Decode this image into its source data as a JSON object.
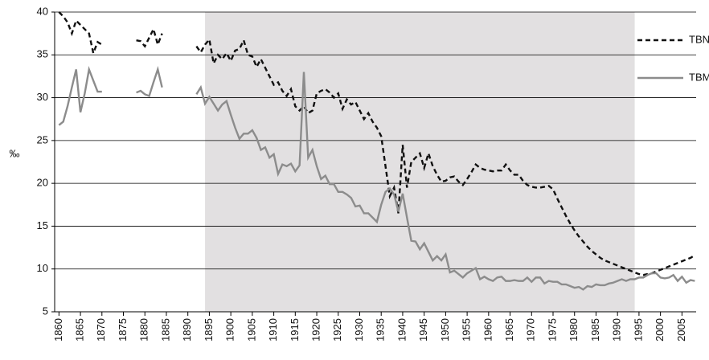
{
  "chart_data": {
    "type": "line",
    "ylabel": "‰",
    "x": [
      1860,
      1861,
      1862,
      1863,
      1864,
      1865,
      1866,
      1867,
      1868,
      1869,
      1870,
      1871,
      1878,
      1879,
      1880,
      1881,
      1882,
      1883,
      1884,
      1885,
      1892,
      1893,
      1894,
      1895,
      1896,
      1897,
      1898,
      1899,
      1900,
      1901,
      1902,
      1903,
      1904,
      1905,
      1906,
      1907,
      1908,
      1909,
      1910,
      1911,
      1912,
      1913,
      1914,
      1915,
      1916,
      1917,
      1918,
      1919,
      1920,
      1921,
      1922,
      1923,
      1924,
      1925,
      1926,
      1927,
      1928,
      1929,
      1930,
      1931,
      1932,
      1933,
      1934,
      1935,
      1936,
      1937,
      1938,
      1939,
      1940,
      1941,
      1942,
      1943,
      1944,
      1945,
      1946,
      1947,
      1948,
      1949,
      1950,
      1951,
      1952,
      1953,
      1954,
      1955,
      1956,
      1957,
      1958,
      1959,
      1960,
      1961,
      1962,
      1963,
      1964,
      1965,
      1966,
      1967,
      1968,
      1969,
      1970,
      1971,
      1972,
      1973,
      1974,
      1975,
      1976,
      1977,
      1978,
      1979,
      1980,
      1981,
      1982,
      1983,
      1984,
      1985,
      1986,
      1987,
      1988,
      1989,
      1990,
      1991,
      1992,
      1993,
      1994,
      1995,
      1996,
      1997,
      1998,
      1999,
      2000,
      2001,
      2002,
      2003,
      2004,
      2005,
      2006,
      2007,
      2008
    ],
    "series": [
      {
        "name": "TBN",
        "color": "#111111",
        "dashed": true,
        "values": [
          40,
          39.5,
          38.8,
          37.5,
          39,
          38.5,
          38,
          37.5,
          35.2,
          36.5,
          36.2,
          null,
          36.7,
          36.6,
          36,
          37,
          38,
          36.2,
          37.5,
          null,
          36,
          35.3,
          36.2,
          36.8,
          34,
          35,
          34.5,
          35.2,
          34.3,
          35.5,
          35.7,
          36.7,
          35,
          34.8,
          33.6,
          34.5,
          33.5,
          32.5,
          31.5,
          31.8,
          30.8,
          30.2,
          31,
          29,
          28.5,
          29,
          28.2,
          28.5,
          30.5,
          30.8,
          31,
          30.6,
          30,
          30.5,
          28.7,
          29.8,
          29.2,
          29.5,
          28.5,
          27.5,
          28.2,
          27.2,
          26.5,
          25.5,
          22,
          18.5,
          19.5,
          16.5,
          24.5,
          19.5,
          22.5,
          23,
          23.5,
          21.8,
          23.5,
          22,
          21,
          20.2,
          20.3,
          20.7,
          20.8,
          20.2,
          19.8,
          20.5,
          21.3,
          22.2,
          21.8,
          21.6,
          21.5,
          21.4,
          21.5,
          21.5,
          22.2,
          21.5,
          21,
          21,
          20.3,
          19.8,
          19.6,
          19.5,
          19.5,
          19.6,
          19.7,
          19.3,
          18.2,
          17.2,
          16.2,
          15.3,
          14.5,
          13.8,
          13.2,
          12.6,
          12.1,
          11.7,
          11.3,
          11,
          10.8,
          10.6,
          10.4,
          10.2,
          10,
          9.8,
          9.6,
          9.4,
          9.3,
          9.4,
          9.5,
          9.7,
          9.9,
          10.1,
          10.3,
          10.5,
          10.7,
          10.9,
          11.1,
          11.3,
          11.6
        ]
      },
      {
        "name": "TBM",
        "color": "#8c8c8c",
        "dashed": false,
        "values": [
          26.8,
          27.2,
          29,
          31.2,
          33.3,
          28.3,
          30.5,
          33.3,
          32,
          30.7,
          30.7,
          null,
          30.6,
          30.8,
          30.4,
          30.2,
          31.8,
          33.3,
          31.2,
          null,
          30.4,
          31.2,
          29.3,
          30.1,
          29.3,
          28.5,
          29.2,
          29.6,
          28,
          26.5,
          25.2,
          25.8,
          25.8,
          26.2,
          25.3,
          23.9,
          24.2,
          23,
          23.4,
          21.1,
          22.2,
          22,
          22.3,
          21.4,
          22.1,
          33,
          23,
          23.9,
          22,
          20.5,
          20.9,
          19.9,
          19.9,
          19,
          19,
          18.7,
          18.3,
          17.3,
          17.4,
          16.5,
          16.5,
          16,
          15.5,
          17.5,
          19,
          19.4,
          18.7,
          16.7,
          18.8,
          16,
          13.3,
          13.2,
          12.3,
          13,
          12,
          11,
          11.5,
          11,
          11.7,
          9.6,
          9.8,
          9.4,
          9,
          9.5,
          9.8,
          10.1,
          8.8,
          9.1,
          8.8,
          8.6,
          9,
          9.1,
          8.6,
          8.6,
          8.7,
          8.6,
          8.6,
          9,
          8.5,
          9,
          9,
          8.3,
          8.6,
          8.5,
          8.5,
          8.2,
          8.2,
          8,
          7.8,
          7.9,
          7.6,
          8,
          7.9,
          8.2,
          8.1,
          8.1,
          8.3,
          8.4,
          8.6,
          8.8,
          8.6,
          8.8,
          8.8,
          9,
          9,
          9.3,
          9.5,
          9.5,
          9,
          8.9,
          9,
          9.3,
          8.6,
          9.1,
          8.4,
          8.7,
          8.6
        ]
      }
    ],
    "shade": [
      1894,
      1994
    ],
    "shade_color": "#e2e0e1",
    "xlim": [
      1859,
      2008.3
    ],
    "xticks": [
      1860,
      1865,
      1870,
      1875,
      1880,
      1885,
      1890,
      1895,
      1900,
      1905,
      1910,
      1915,
      1920,
      1925,
      1930,
      1935,
      1940,
      1945,
      1950,
      1955,
      1960,
      1965,
      1970,
      1975,
      1980,
      1985,
      1990,
      1995,
      2000,
      2005
    ],
    "ylim": [
      5,
      40
    ],
    "yticks": [
      5,
      10,
      15,
      20,
      25,
      30,
      35,
      40
    ],
    "grid": true,
    "legend": "upper right"
  }
}
